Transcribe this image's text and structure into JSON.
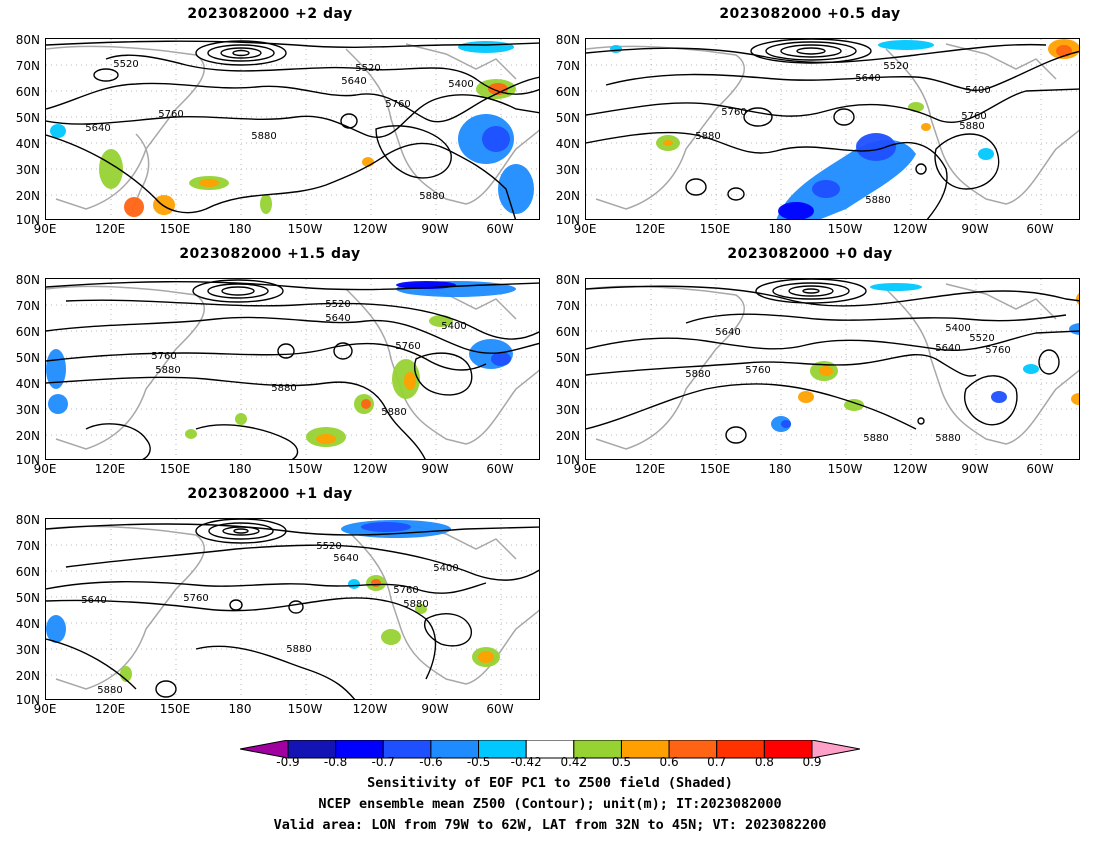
{
  "panels": [
    {
      "title": "2023082000  +2  day"
    },
    {
      "title": "2023082000  +0.5  day"
    },
    {
      "title": "2023082000  +1.5  day"
    },
    {
      "title": "2023082000  +0  day"
    },
    {
      "title": "2023082000  +1  day"
    }
  ],
  "lat_labels": [
    "80N",
    "70N",
    "60N",
    "50N",
    "40N",
    "30N",
    "20N",
    "10N"
  ],
  "lon_labels": [
    "90E",
    "120E",
    "150E",
    "180",
    "150W",
    "120W",
    "90W",
    "60W"
  ],
  "contour_labels": [
    "5400",
    "5520",
    "5640",
    "5760",
    "5880"
  ],
  "colorbar": {
    "ticks": [
      "-0.9",
      "-0.8",
      "-0.7",
      "-0.6",
      "-0.5",
      "-0.42",
      "0.42",
      "0.5",
      "0.6",
      "0.7",
      "0.8",
      "0.9"
    ],
    "colors": [
      "#a000a0",
      "#1414b4",
      "#0000ff",
      "#1e50ff",
      "#1e8cff",
      "#00c8ff",
      "#ffffff",
      "#96d232",
      "#ffa000",
      "#ff6414",
      "#ff3200",
      "#ff0000",
      "#ffa0c8"
    ]
  },
  "caption": {
    "line1": "Sensitivity of EOF PC1 to Z500 field (Shaded)",
    "line2": "NCEP ensemble mean Z500 (Contour); unit(m); IT:2023082000",
    "line3": "Valid area: LON from 79W to 62W, LAT from 32N to 45N; VT: 2023082200"
  }
}
